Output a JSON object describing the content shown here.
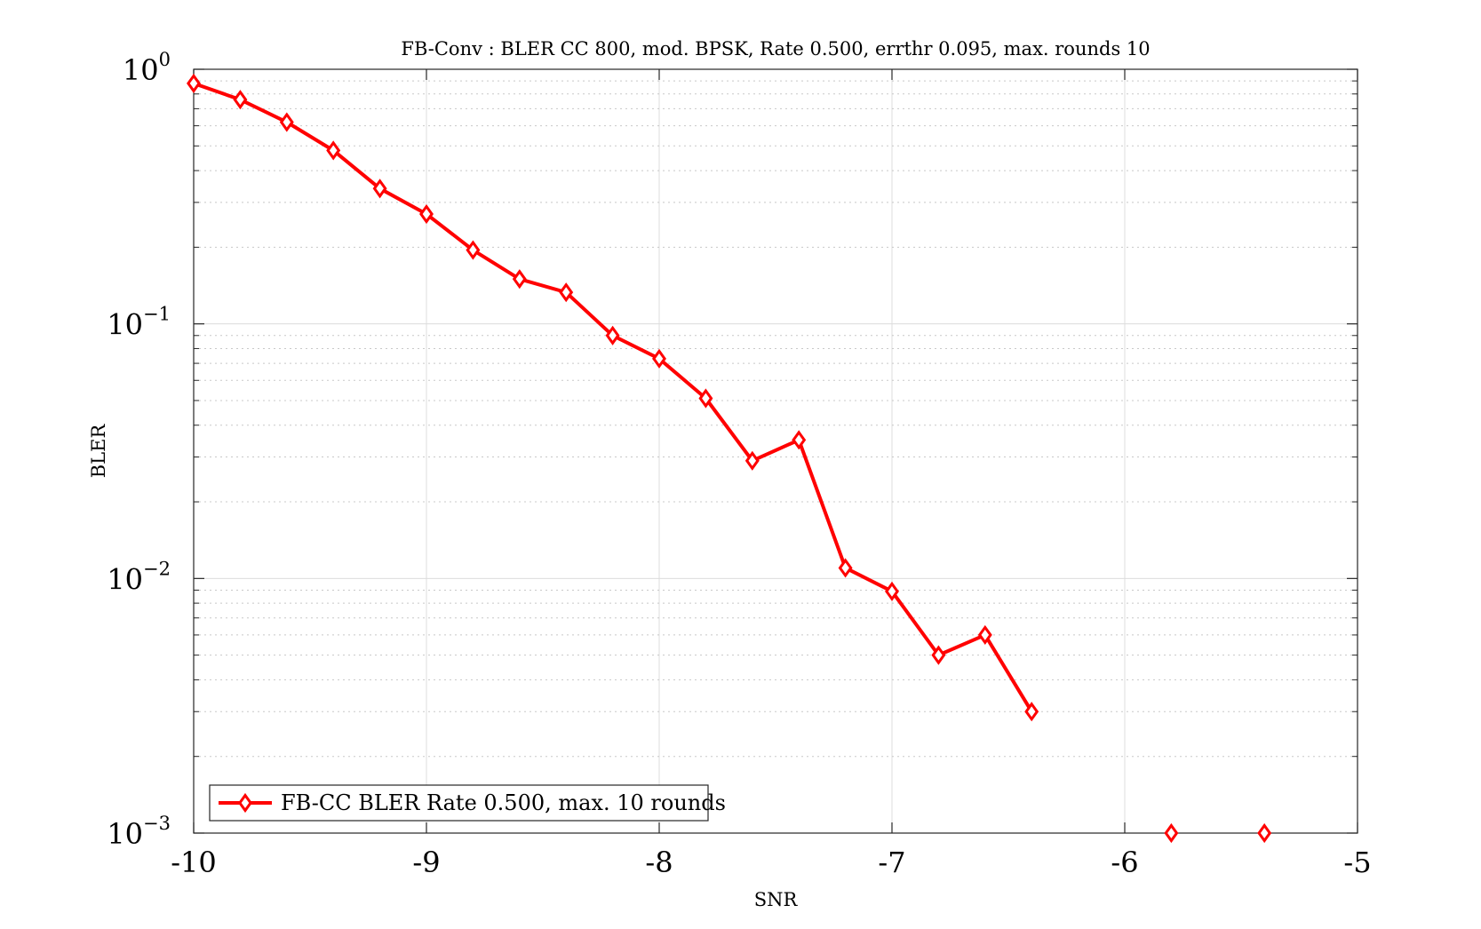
{
  "chart_data": {
    "type": "line",
    "title": "FB-Conv : BLER CC 800, mod. BPSK, Rate 0.500, errthr 0.095, max. rounds 10",
    "xlabel": "SNR",
    "ylabel": "BLER",
    "xlim": [
      -10,
      -5
    ],
    "ylim": [
      0.001,
      1
    ],
    "yscale": "log",
    "grid": true,
    "minor_grid": true,
    "legend_position": "bottom-left",
    "x_ticks": [
      "-10",
      "-9",
      "-8",
      "-7",
      "-6",
      "-5"
    ],
    "y_ticks": [
      {
        "base": "10",
        "exp": "0"
      },
      {
        "base": "10",
        "exp": "−1"
      },
      {
        "base": "10",
        "exp": "−2"
      },
      {
        "base": "10",
        "exp": "−3"
      }
    ],
    "series": [
      {
        "name": "FB-CC BLER Rate 0.500, max. 10 rounds",
        "color": "#ff0000",
        "marker": "diamond",
        "x": [
          -10,
          -9.8,
          -9.6,
          -9.4,
          -9.2,
          -9.0,
          -8.8,
          -8.6,
          -8.4,
          -8.2,
          -8.0,
          -7.8,
          -7.6,
          -7.4,
          -7.2,
          -7.0,
          -6.8,
          -6.6,
          -6.4
        ],
        "y": [
          0.88,
          0.76,
          0.62,
          0.48,
          0.34,
          0.27,
          0.195,
          0.15,
          0.133,
          0.09,
          0.073,
          0.051,
          0.029,
          0.035,
          0.011,
          0.0089,
          0.005,
          0.006,
          0.003
        ]
      },
      {
        "name": "",
        "color": "#ff0000",
        "marker": "diamond",
        "line": false,
        "x": [
          -5.8,
          -5.4
        ],
        "y": [
          0.001,
          0.001
        ]
      }
    ]
  }
}
